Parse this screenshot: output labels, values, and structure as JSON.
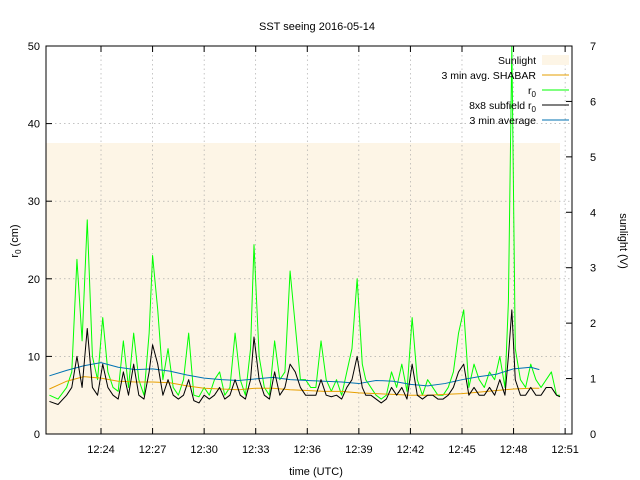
{
  "chart_data": {
    "type": "line",
    "title": "SST seeing 2016-05-14",
    "xlabel": "time (UTC)",
    "ylabel": "r",
    "ylabel_sub": "0",
    "ylabel_unit": "(cm)",
    "y2label": "sunlight (V)",
    "xlim": [
      "12:20.8",
      "12:51.4"
    ],
    "ylim": [
      0,
      50
    ],
    "y2lim": [
      0,
      7
    ],
    "xticks": [
      "12:24",
      "12:27",
      "12:30",
      "12:33",
      "12:36",
      "12:39",
      "12:42",
      "12:45",
      "12:48",
      "12:51"
    ],
    "yticks": [
      "0",
      "10",
      "20",
      "30",
      "40",
      "50"
    ],
    "y2ticks": [
      "0",
      "1",
      "2",
      "3",
      "4",
      "5",
      "6",
      "7"
    ],
    "grid": true,
    "legend_position": "top-right",
    "colors": {
      "sunlight": "#fdf5e6",
      "shabar": "#e69f00",
      "r0": "#00ff00",
      "subfield": "#000000",
      "average": "#0072b2",
      "red_trace": "#ff0000"
    },
    "series": [
      {
        "name": "Sunlight",
        "kind": "band",
        "x": [
          "12:20.8",
          "12:50.7"
        ],
        "y2": [
          5.25,
          5.25
        ]
      },
      {
        "name": "3 min avg. SHABAR",
        "x": [
          "12:21.0",
          "12:22.0",
          "12:23.0",
          "12:24.0",
          "12:25.0",
          "12:26.0",
          "12:27.0",
          "12:28.0",
          "12:29.0",
          "12:30.0",
          "12:31.0",
          "12:32.0",
          "12:33.0",
          "12:34.0",
          "12:35.0",
          "12:36.0",
          "12:37.0",
          "12:38.0",
          "12:39.0",
          "12:40.0",
          "12:41.0",
          "12:42.0",
          "12:43.0",
          "12:44.0",
          "12:45.0",
          "12:46.0",
          "12:47.0",
          "12:48.0",
          "12:49.0",
          "12:49.5"
        ],
        "y": [
          5.8,
          6.8,
          7.4,
          7.2,
          6.8,
          6.7,
          6.7,
          6.6,
          6.2,
          5.9,
          5.8,
          5.7,
          5.9,
          5.9,
          5.7,
          5.6,
          5.5,
          5.5,
          5.3,
          5.2,
          5.1,
          5.0,
          5.0,
          5.1,
          5.2,
          5.4,
          5.6,
          5.8,
          5.9,
          5.9
        ]
      },
      {
        "name": "r0",
        "x": [
          "12:21.0",
          "12:21.5",
          "12:22.0",
          "12:22.3",
          "12:22.6",
          "12:22.9",
          "12:23.2",
          "12:23.5",
          "12:23.8",
          "12:24.1",
          "12:24.4",
          "12:24.7",
          "12:25.0",
          "12:25.3",
          "12:25.6",
          "12:25.9",
          "12:26.2",
          "12:26.5",
          "12:26.8",
          "12:27.0",
          "12:27.3",
          "12:27.6",
          "12:27.9",
          "12:28.2",
          "12:28.5",
          "12:28.8",
          "12:29.1",
          "12:29.4",
          "12:29.7",
          "12:30.0",
          "12:30.3",
          "12:30.6",
          "12:30.9",
          "12:31.2",
          "12:31.5",
          "12:31.8",
          "12:32.1",
          "12:32.4",
          "12:32.7",
          "12:32.9",
          "12:33.2",
          "12:33.5",
          "12:33.8",
          "12:34.1",
          "12:34.4",
          "12:34.7",
          "12:35.0",
          "12:35.3",
          "12:35.6",
          "12:35.9",
          "12:36.2",
          "12:36.5",
          "12:36.8",
          "12:37.1",
          "12:37.4",
          "12:37.7",
          "12:38.0",
          "12:38.3",
          "12:38.6",
          "12:38.9",
          "12:39.2",
          "12:39.4",
          "12:39.7",
          "12:40.0",
          "12:40.3",
          "12:40.6",
          "12:40.9",
          "12:41.2",
          "12:41.5",
          "12:41.8",
          "12:42.1",
          "12:42.4",
          "12:42.7",
          "12:43.0",
          "12:43.3",
          "12:43.6",
          "12:43.9",
          "12:44.2",
          "12:44.5",
          "12:44.8",
          "12:45.1",
          "12:45.4",
          "12:45.7",
          "12:46.0",
          "12:46.3",
          "12:46.6",
          "12:46.9",
          "12:47.2",
          "12:47.5",
          "12:47.7",
          "12:47.9",
          "12:48.1",
          "12:48.4",
          "12:48.7",
          "12:49.0",
          "12:49.3",
          "12:49.6",
          "12:49.9",
          "12:50.2",
          "12:50.5",
          "12:50.7"
        ],
        "y": [
          5,
          4.5,
          6,
          8,
          22.5,
          12,
          27.6,
          10,
          7,
          15,
          8,
          6,
          5.5,
          12,
          6,
          13,
          7,
          5,
          13,
          23,
          16,
          7,
          11,
          6,
          5,
          7,
          13,
          5,
          4.8,
          6,
          5,
          7,
          8,
          5,
          6,
          13,
          7,
          5,
          11,
          24.4,
          10,
          6,
          5,
          12,
          7,
          8,
          21,
          14,
          7,
          7,
          6,
          6,
          12,
          7,
          5.5,
          7,
          5,
          8,
          11,
          20,
          9,
          7,
          6,
          5,
          4.5,
          5,
          8,
          6,
          9,
          5.5,
          15,
          7,
          5,
          7,
          6,
          5,
          5,
          6,
          8,
          13,
          16,
          6,
          9,
          7,
          6,
          8,
          7,
          10,
          6,
          17,
          50,
          11,
          7,
          6,
          9,
          7,
          6,
          7,
          8,
          5,
          5
        ]
      },
      {
        "name": "8x8 subfield r0",
        "x": [
          "12:21.0",
          "12:21.5",
          "12:22.0",
          "12:22.3",
          "12:22.6",
          "12:22.9",
          "12:23.2",
          "12:23.5",
          "12:23.8",
          "12:24.1",
          "12:24.4",
          "12:24.7",
          "12:25.0",
          "12:25.3",
          "12:25.6",
          "12:25.9",
          "12:26.2",
          "12:26.5",
          "12:26.8",
          "12:27.0",
          "12:27.3",
          "12:27.6",
          "12:27.9",
          "12:28.2",
          "12:28.5",
          "12:28.8",
          "12:29.1",
          "12:29.4",
          "12:29.7",
          "12:30.0",
          "12:30.3",
          "12:30.6",
          "12:30.9",
          "12:31.2",
          "12:31.5",
          "12:31.8",
          "12:32.1",
          "12:32.4",
          "12:32.7",
          "12:32.9",
          "12:33.2",
          "12:33.5",
          "12:33.8",
          "12:34.1",
          "12:34.4",
          "12:34.7",
          "12:35.0",
          "12:35.3",
          "12:35.6",
          "12:35.9",
          "12:36.2",
          "12:36.5",
          "12:36.8",
          "12:37.1",
          "12:37.4",
          "12:37.7",
          "12:38.0",
          "12:38.3",
          "12:38.6",
          "12:38.9",
          "12:39.2",
          "12:39.4",
          "12:39.7",
          "12:40.0",
          "12:40.3",
          "12:40.6",
          "12:40.9",
          "12:41.2",
          "12:41.5",
          "12:41.8",
          "12:42.1",
          "12:42.4",
          "12:42.7",
          "12:43.0",
          "12:43.3",
          "12:43.6",
          "12:43.9",
          "12:44.2",
          "12:44.5",
          "12:44.8",
          "12:45.1",
          "12:45.4",
          "12:45.7",
          "12:46.0",
          "12:46.3",
          "12:46.6",
          "12:46.9",
          "12:47.2",
          "12:47.5",
          "12:47.7",
          "12:47.9",
          "12:48.1",
          "12:48.4",
          "12:48.7",
          "12:49.0",
          "12:49.3",
          "12:49.6",
          "12:49.9",
          "12:50.2",
          "12:50.5",
          "12:50.7"
        ],
        "y": [
          4.2,
          3.8,
          5,
          6,
          10,
          6,
          13.6,
          6,
          5,
          9,
          6,
          5,
          4.5,
          8,
          5,
          9,
          5,
          4.5,
          8,
          11.5,
          9,
          5,
          7,
          5,
          4.5,
          5,
          7,
          4.3,
          4,
          5,
          4.5,
          5,
          6,
          4.5,
          5,
          7,
          5,
          4.5,
          7,
          12.5,
          7,
          5,
          4.5,
          8,
          5,
          6,
          9,
          8,
          6,
          5,
          5,
          5,
          7,
          5,
          4.8,
          5,
          4.5,
          6,
          7,
          10,
          6,
          5,
          5,
          4.5,
          4,
          4.5,
          6,
          5,
          6,
          4.5,
          9,
          5,
          4.5,
          5,
          5,
          4.5,
          4.5,
          5,
          6,
          8,
          9,
          5,
          6,
          5,
          5,
          6,
          5,
          7,
          5,
          10,
          16,
          7,
          5,
          5,
          6,
          5,
          5,
          6,
          6,
          5,
          4.8
        ]
      },
      {
        "name": "3 min average",
        "x": [
          "12:21.0",
          "12:22.0",
          "12:23.0",
          "12:24.0",
          "12:25.0",
          "12:26.0",
          "12:27.0",
          "12:28.0",
          "12:29.0",
          "12:30.0",
          "12:31.0",
          "12:32.0",
          "12:33.0",
          "12:34.0",
          "12:35.0",
          "12:36.0",
          "12:37.0",
          "12:38.0",
          "12:39.0",
          "12:40.0",
          "12:41.0",
          "12:42.0",
          "12:43.0",
          "12:44.0",
          "12:45.0",
          "12:46.0",
          "12:47.0",
          "12:48.0",
          "12:49.0",
          "12:49.5"
        ],
        "y": [
          7.5,
          8.2,
          8.8,
          9.2,
          8.6,
          8.3,
          8.4,
          8.1,
          7.6,
          7.2,
          7.0,
          6.9,
          7.1,
          7.3,
          7.0,
          6.9,
          6.8,
          6.7,
          6.5,
          6.9,
          6.8,
          6.4,
          6.2,
          6.5,
          7.0,
          7.4,
          7.7,
          8.4,
          8.6,
          8.3
        ]
      }
    ]
  }
}
